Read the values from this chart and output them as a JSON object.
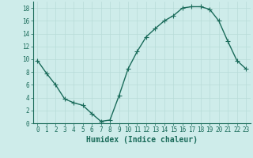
{
  "x": [
    0,
    1,
    2,
    3,
    4,
    5,
    6,
    7,
    8,
    9,
    10,
    11,
    12,
    13,
    14,
    15,
    16,
    17,
    18,
    19,
    20,
    21,
    22,
    23
  ],
  "y": [
    9.8,
    7.8,
    6.0,
    3.8,
    3.2,
    2.8,
    1.5,
    0.3,
    0.5,
    4.3,
    8.5,
    11.2,
    13.5,
    14.8,
    16.0,
    16.8,
    18.0,
    18.2,
    18.2,
    17.8,
    16.0,
    12.8,
    9.8,
    8.5
  ],
  "line_color": "#1a6b5a",
  "marker": "+",
  "markersize": 4,
  "linewidth": 1.0,
  "markeredgewidth": 0.8,
  "xlabel": "Humidex (Indice chaleur)",
  "xlim": [
    -0.5,
    23.5
  ],
  "ylim": [
    0,
    19
  ],
  "xticks": [
    0,
    1,
    2,
    3,
    4,
    5,
    6,
    7,
    8,
    9,
    10,
    11,
    12,
    13,
    14,
    15,
    16,
    17,
    18,
    19,
    20,
    21,
    22,
    23
  ],
  "yticks": [
    0,
    2,
    4,
    6,
    8,
    10,
    12,
    14,
    16,
    18
  ],
  "bg_color": "#ceecea",
  "grid_color": "#b8dbd8",
  "text_color": "#1a6b5a",
  "xlabel_fontsize": 7,
  "tick_fontsize": 5.5
}
